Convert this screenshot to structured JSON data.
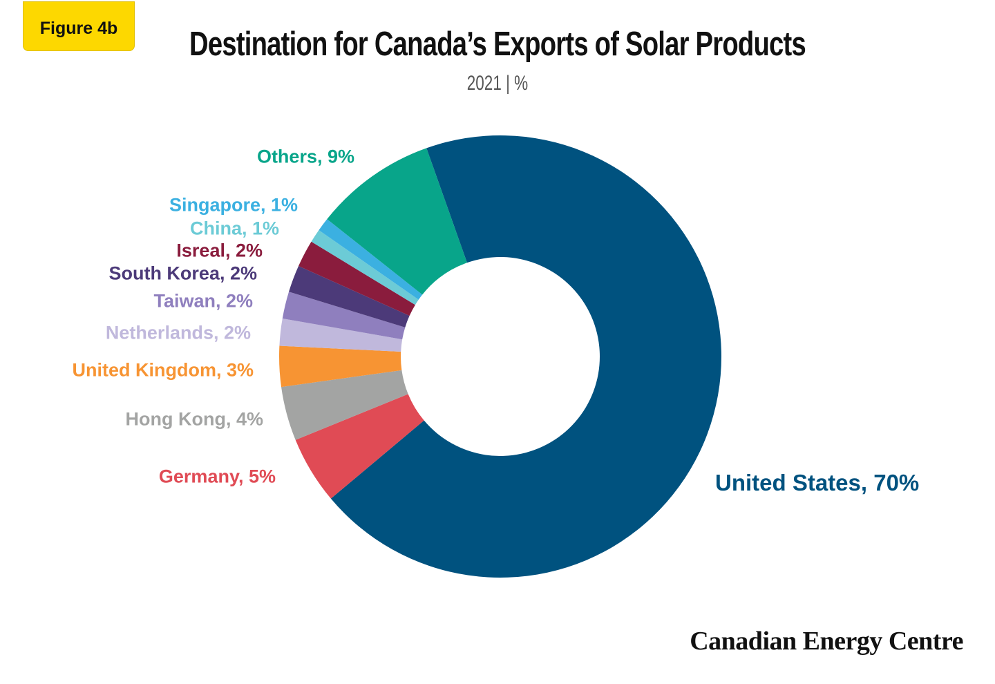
{
  "badge": "Figure 4b",
  "logo_text": "Canadian Energy Centre",
  "chart_data": {
    "type": "pie",
    "variant": "donut",
    "title": "Destination for Canada’s Exports of Solar Products",
    "subtitle": "2021  |  %",
    "slices": [
      {
        "name": "United States",
        "value": 70,
        "label": "United States, 70%",
        "color": "#00527f"
      },
      {
        "name": "Germany",
        "value": 5,
        "label": "Germany, 5%",
        "color": "#e04b55"
      },
      {
        "name": "Hong Kong",
        "value": 4,
        "label": "Hong Kong, 4%",
        "color": "#a3a4a3"
      },
      {
        "name": "United Kingdom",
        "value": 3,
        "label": "United Kingdom, 3%",
        "color": "#f79433"
      },
      {
        "name": "Netherlands",
        "value": 2,
        "label": "Netherlands, 2%",
        "color": "#c0b8dc"
      },
      {
        "name": "Taiwan",
        "value": 2,
        "label": "Taiwan, 2%",
        "color": "#8f7fbe"
      },
      {
        "name": "South Korea",
        "value": 2,
        "label": "South Korea, 2%",
        "color": "#4c3a79"
      },
      {
        "name": "Isreal",
        "value": 2,
        "label": "Isreal, 2%",
        "color": "#8a1c3d"
      },
      {
        "name": "China",
        "value": 1,
        "label": "China, 1%",
        "color": "#6ccbd6"
      },
      {
        "name": "Singapore",
        "value": 1,
        "label": "Singapore, 1%",
        "color": "#3bb0e1"
      },
      {
        "name": "Others",
        "value": 9,
        "label": "Others, 9%",
        "color": "#08a58a"
      }
    ]
  }
}
